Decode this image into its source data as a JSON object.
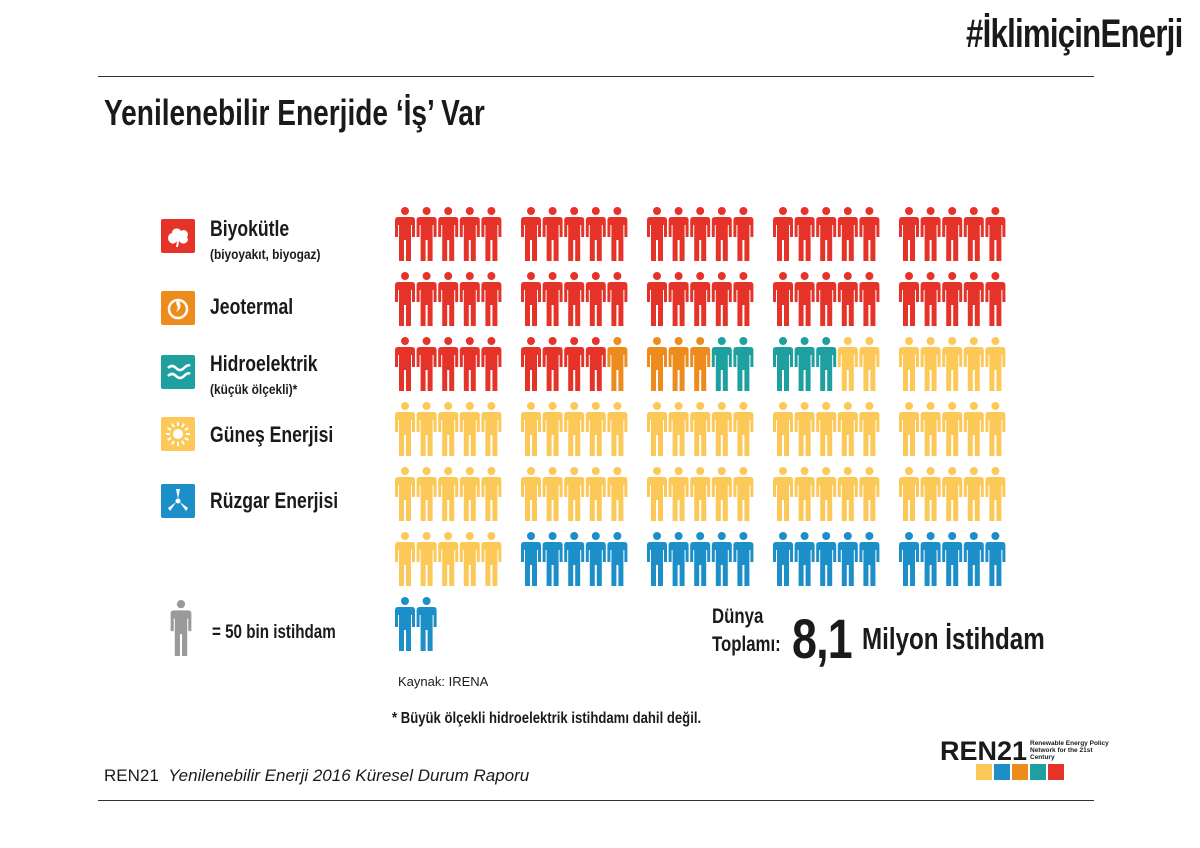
{
  "hashtag": "#İklimiçinEnerji",
  "title": "Yenilenebilir Enerjide ‘İş’ Var",
  "legend": [
    {
      "label": "Biyokütle",
      "sublabel": "(biyoyakıt, biyogaz)",
      "icon": "leaf-icon",
      "color": "#e63329"
    },
    {
      "label": "Jeotermal",
      "sublabel": "",
      "icon": "geothermal-icon",
      "color": "#ee8b1d"
    },
    {
      "label": "Hidroelektrik",
      "sublabel": "(küçük ölçekli)*",
      "icon": "water-waves-icon",
      "color": "#1ea0a0"
    },
    {
      "label": "Güneş Enerjisi",
      "sublabel": "",
      "icon": "sun-icon",
      "color": "#fcc958"
    },
    {
      "label": "Rüzgar Enerjisi",
      "sublabel": "",
      "icon": "wind-turbine-icon",
      "color": "#1c8ec8"
    }
  ],
  "unit": {
    "label": "= 50 bin istihdam",
    "icon": "person-icon",
    "color": "#9a9a9a"
  },
  "total": {
    "label_line1": "Dünya",
    "label_line2": "Toplamı:",
    "value": "8,1",
    "unit": "Milyon İstihdam"
  },
  "source": "Kaynak: IRENA",
  "footnote": "* Büyük ölçekli hidroelektrik istihdamı dahil değil.",
  "report": {
    "org": "REN21",
    "name": "Yenilenebilir Enerji 2016 Küresel Durum Raporu"
  },
  "logo": {
    "text": "REN21",
    "subtitle": "Renewable Energy Policy Network for the 21st Century"
  },
  "chart_data": {
    "type": "pictogram",
    "unit_value": 50000,
    "unit_label": "= 50 bin istihdam",
    "per_row": 25,
    "group_size": 5,
    "series": [
      {
        "name": "Biyokütle",
        "count": 59,
        "color": "#e63329"
      },
      {
        "name": "Jeotermal",
        "count": 4,
        "color": "#ee8b1d"
      },
      {
        "name": "Hidroelektrik",
        "count": 5,
        "color": "#1ea0a0"
      },
      {
        "name": "Güneş Enerjisi",
        "count": 62,
        "color": "#fcc958"
      },
      {
        "name": "Rüzgar Enerjisi",
        "count": 22,
        "color": "#1c8ec8"
      }
    ]
  }
}
